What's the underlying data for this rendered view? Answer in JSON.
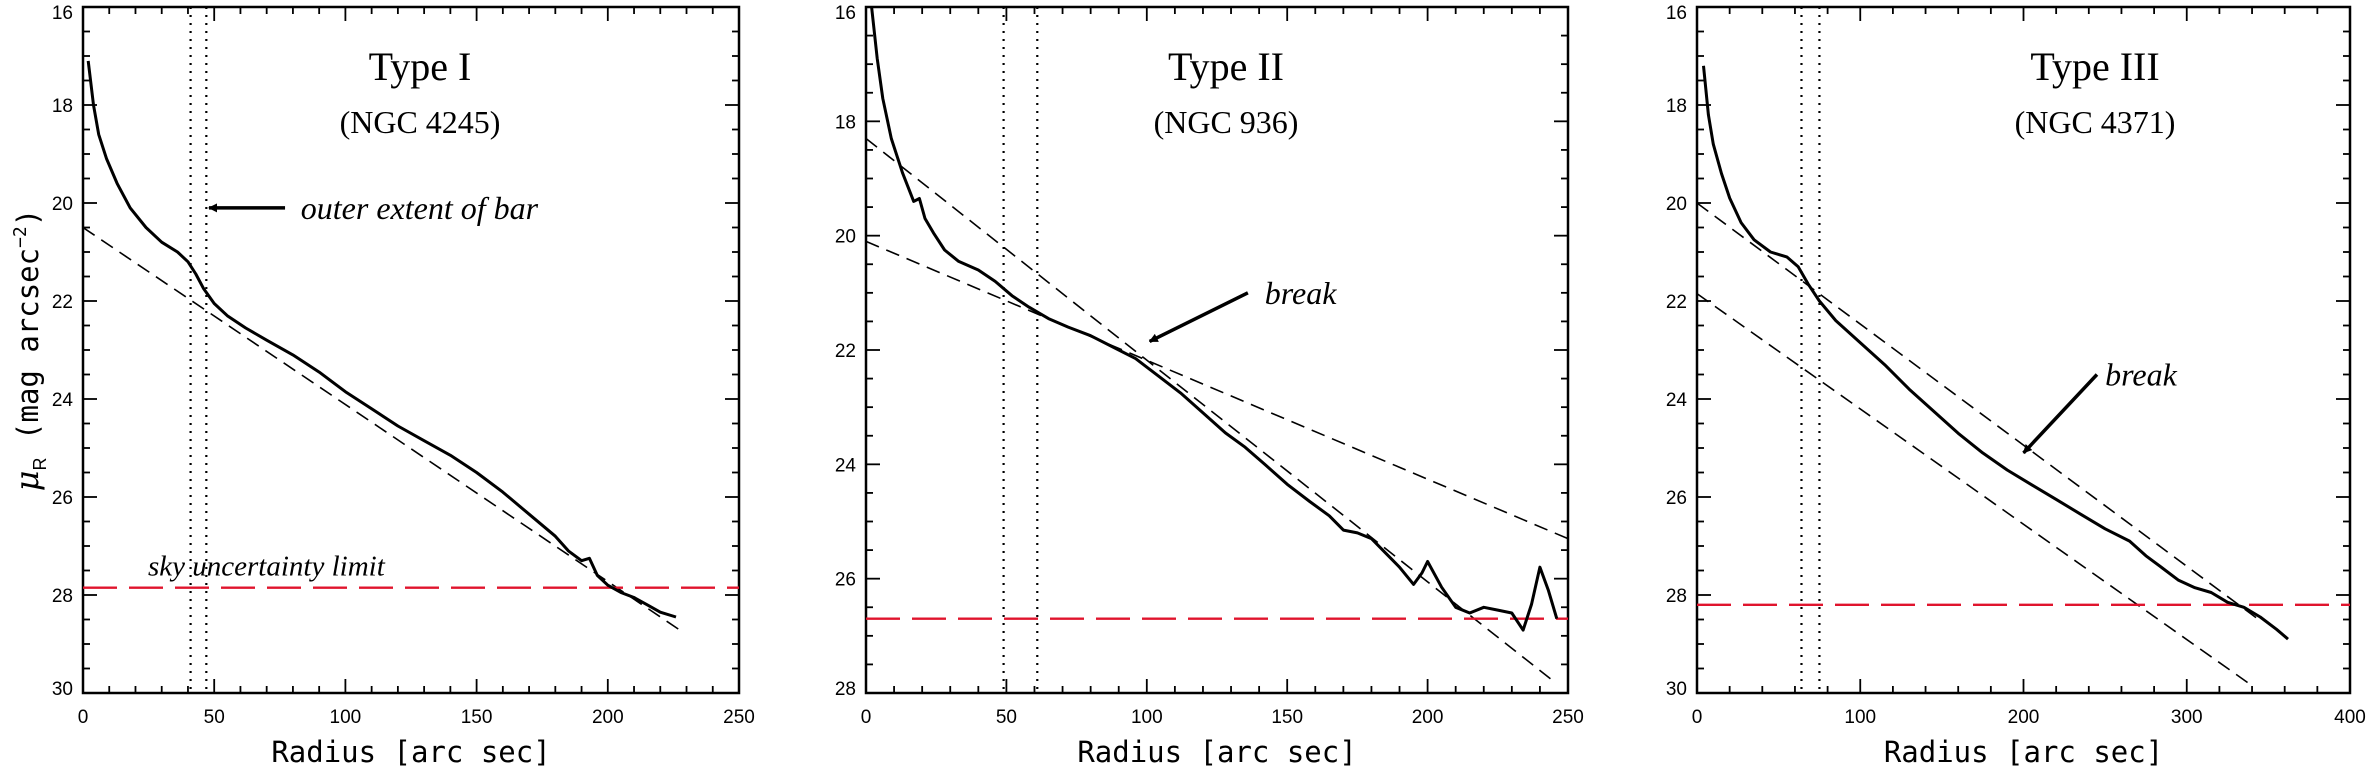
{
  "chart_data": [
    {
      "type": "line",
      "title": "Type I",
      "subtitle": "(NGC 4245)",
      "xlabel": "Radius [arc sec]",
      "ylabel_symbol": "μ",
      "ylabel_sub": "R",
      "ylabel_rest": " (mag arcsec",
      "ylabel_exp": "−2",
      "ylabel_close": ")",
      "xlim": [
        0,
        250
      ],
      "ylim": [
        30,
        16
      ],
      "xticks": [
        0,
        50,
        100,
        150,
        200,
        250
      ],
      "yticks": [
        16,
        18,
        20,
        22,
        24,
        26,
        28,
        30
      ],
      "profile": [
        [
          2,
          17.1
        ],
        [
          4,
          18.0
        ],
        [
          6,
          18.6
        ],
        [
          9,
          19.1
        ],
        [
          13,
          19.6
        ],
        [
          18,
          20.1
        ],
        [
          24,
          20.5
        ],
        [
          30,
          20.8
        ],
        [
          36,
          21.0
        ],
        [
          40,
          21.2
        ],
        [
          43,
          21.45
        ],
        [
          46,
          21.75
        ],
        [
          50,
          22.05
        ],
        [
          55,
          22.3
        ],
        [
          62,
          22.55
        ],
        [
          70,
          22.8
        ],
        [
          80,
          23.1
        ],
        [
          90,
          23.45
        ],
        [
          100,
          23.85
        ],
        [
          110,
          24.2
        ],
        [
          120,
          24.55
        ],
        [
          130,
          24.85
        ],
        [
          140,
          25.15
        ],
        [
          150,
          25.5
        ],
        [
          160,
          25.9
        ],
        [
          170,
          26.35
        ],
        [
          180,
          26.8
        ],
        [
          185,
          27.1
        ],
        [
          190,
          27.3
        ],
        [
          193,
          27.25
        ],
        [
          196,
          27.6
        ],
        [
          200,
          27.8
        ],
        [
          205,
          27.95
        ],
        [
          210,
          28.05
        ],
        [
          215,
          28.2
        ],
        [
          220,
          28.35
        ],
        [
          226,
          28.45
        ]
      ],
      "fits": [
        [
          [
            0,
            20.5
          ],
          [
            227,
            28.7
          ]
        ]
      ],
      "sky_limit": 27.85,
      "sky_label": "sky uncertainty limit",
      "bar_lines": [
        41,
        47
      ],
      "arrow": {
        "from": [
          77,
          20.1
        ],
        "to": [
          48,
          20.1
        ],
        "label": "outer extent of bar",
        "label_at": [
          83,
          20.1
        ]
      }
    },
    {
      "type": "line",
      "title": "Type II",
      "subtitle": "(NGC 936)",
      "xlabel": "Radius [arc sec]",
      "xlim": [
        0,
        250
      ],
      "ylim": [
        28,
        16
      ],
      "xticks": [
        0,
        50,
        100,
        150,
        200,
        250
      ],
      "yticks": [
        16,
        18,
        20,
        22,
        24,
        26,
        28
      ],
      "profile": [
        [
          2,
          16.0
        ],
        [
          4,
          16.9
        ],
        [
          6,
          17.6
        ],
        [
          9,
          18.3
        ],
        [
          13,
          18.9
        ],
        [
          17,
          19.4
        ],
        [
          19,
          19.35
        ],
        [
          21,
          19.7
        ],
        [
          24,
          19.95
        ],
        [
          28,
          20.25
        ],
        [
          33,
          20.45
        ],
        [
          40,
          20.6
        ],
        [
          46,
          20.8
        ],
        [
          52,
          21.05
        ],
        [
          58,
          21.25
        ],
        [
          65,
          21.45
        ],
        [
          72,
          21.6
        ],
        [
          80,
          21.75
        ],
        [
          88,
          21.95
        ],
        [
          96,
          22.15
        ],
        [
          104,
          22.45
        ],
        [
          112,
          22.75
        ],
        [
          120,
          23.1
        ],
        [
          128,
          23.45
        ],
        [
          135,
          23.7
        ],
        [
          142,
          24.0
        ],
        [
          150,
          24.35
        ],
        [
          158,
          24.65
        ],
        [
          165,
          24.9
        ],
        [
          170,
          25.15
        ],
        [
          175,
          25.2
        ],
        [
          180,
          25.3
        ],
        [
          185,
          25.55
        ],
        [
          190,
          25.8
        ],
        [
          195,
          26.1
        ],
        [
          198,
          25.9
        ],
        [
          200,
          25.7
        ],
        [
          205,
          26.15
        ],
        [
          210,
          26.5
        ],
        [
          215,
          26.6
        ],
        [
          220,
          26.5
        ],
        [
          225,
          26.55
        ],
        [
          230,
          26.6
        ],
        [
          234,
          26.9
        ],
        [
          237,
          26.45
        ],
        [
          240,
          25.8
        ],
        [
          243,
          26.2
        ],
        [
          246,
          26.7
        ]
      ],
      "fits": [
        [
          [
            0,
            20.1
          ],
          [
            250,
            25.3
          ]
        ],
        [
          [
            0,
            18.3
          ],
          [
            245,
            27.8
          ]
        ]
      ],
      "sky_limit": 26.7,
      "bar_lines": [
        49,
        61
      ],
      "arrow": {
        "from": [
          136,
          21.0
        ],
        "to": [
          101,
          21.85
        ],
        "label": "break",
        "label_at": [
          142,
          21.0
        ]
      }
    },
    {
      "type": "line",
      "title": "Type III",
      "subtitle": "(NGC 4371)",
      "xlabel": "Radius [arc sec]",
      "xlim": [
        0,
        400
      ],
      "ylim": [
        30,
        16
      ],
      "xticks": [
        0,
        100,
        200,
        300,
        400
      ],
      "yticks": [
        16,
        18,
        20,
        22,
        24,
        26,
        28,
        30
      ],
      "profile": [
        [
          4,
          17.2
        ],
        [
          7,
          18.2
        ],
        [
          10,
          18.8
        ],
        [
          15,
          19.4
        ],
        [
          20,
          19.9
        ],
        [
          27,
          20.4
        ],
        [
          35,
          20.75
        ],
        [
          45,
          21.0
        ],
        [
          55,
          21.1
        ],
        [
          62,
          21.3
        ],
        [
          68,
          21.65
        ],
        [
          75,
          22.0
        ],
        [
          85,
          22.4
        ],
        [
          100,
          22.85
        ],
        [
          115,
          23.3
        ],
        [
          130,
          23.8
        ],
        [
          145,
          24.25
        ],
        [
          160,
          24.7
        ],
        [
          175,
          25.1
        ],
        [
          190,
          25.45
        ],
        [
          205,
          25.75
        ],
        [
          220,
          26.05
        ],
        [
          235,
          26.35
        ],
        [
          250,
          26.65
        ],
        [
          265,
          26.9
        ],
        [
          275,
          27.2
        ],
        [
          285,
          27.45
        ],
        [
          295,
          27.7
        ],
        [
          305,
          27.85
        ],
        [
          315,
          27.95
        ],
        [
          325,
          28.15
        ],
        [
          335,
          28.25
        ],
        [
          345,
          28.45
        ],
        [
          355,
          28.7
        ],
        [
          362,
          28.9
        ]
      ],
      "fits": [
        [
          [
            0,
            21.85
          ],
          [
            340,
            29.85
          ]
        ],
        [
          [
            0,
            20.0
          ],
          [
            346,
            28.55
          ]
        ]
      ],
      "sky_limit": 28.2,
      "bar_lines": [
        64,
        75
      ],
      "arrow": {
        "from": [
          245,
          23.5
        ],
        "to": [
          200,
          25.1
        ],
        "label": "break",
        "label_at": [
          250,
          23.5
        ]
      }
    }
  ]
}
